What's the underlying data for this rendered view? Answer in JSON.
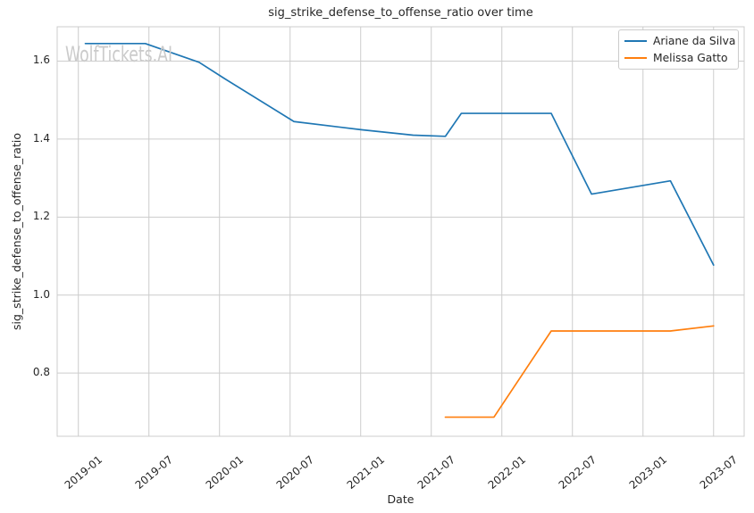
{
  "chart_data": {
    "type": "line",
    "title": "sig_strike_defense_to_offense_ratio over time",
    "xlabel": "Date",
    "ylabel": "sig_strike_defense_to_offense_ratio",
    "watermark": "WolfTickets.AI",
    "grid": true,
    "legend_position": "upper right",
    "x_tick_labels": [
      "2019-01",
      "2019-07",
      "2020-01",
      "2020-07",
      "2021-01",
      "2021-07",
      "2022-01",
      "2022-07",
      "2023-01",
      "2023-07"
    ],
    "y_tick_labels": [
      "0.8",
      "1.0",
      "1.2",
      "1.4",
      "1.6"
    ],
    "y_tick_values": [
      0.8,
      1.0,
      1.2,
      1.4,
      1.6
    ],
    "x_axis_months_range": [
      -1.8,
      56.6
    ],
    "y_axis_range": [
      0.638,
      1.688
    ],
    "x_epoch_label": "2019-01",
    "series": [
      {
        "name": "Ariane da Silva",
        "color": "#1f77b4",
        "points": [
          [
            "2019-01-19",
            1.645
          ],
          [
            "2019-06-22",
            1.645
          ],
          [
            "2019-11-09",
            1.597
          ],
          [
            "2020-01-11",
            1.557
          ],
          [
            "2020-07-11",
            1.445
          ],
          [
            "2021-01-02",
            1.424
          ],
          [
            "2021-05-15",
            1.41
          ],
          [
            "2021-08-07",
            1.407
          ],
          [
            "2021-09-18",
            1.466
          ],
          [
            "2022-05-07",
            1.466
          ],
          [
            "2022-08-20",
            1.259
          ],
          [
            "2023-03-11",
            1.293
          ],
          [
            "2023-07-01",
            1.077
          ]
        ]
      },
      {
        "name": "Melissa Gatto",
        "color": "#ff7f0e",
        "points": [
          [
            "2021-08-07",
            0.687
          ],
          [
            "2021-12-11",
            0.687
          ],
          [
            "2022-05-07",
            0.908
          ],
          [
            "2023-03-11",
            0.908
          ],
          [
            "2023-07-01",
            0.921
          ]
        ]
      }
    ]
  },
  "colors": {
    "grid": "#cccccc",
    "axis_edge": "#cccccc",
    "text": "#262626",
    "watermark": "#cbcbcb",
    "background": "#ffffff"
  }
}
